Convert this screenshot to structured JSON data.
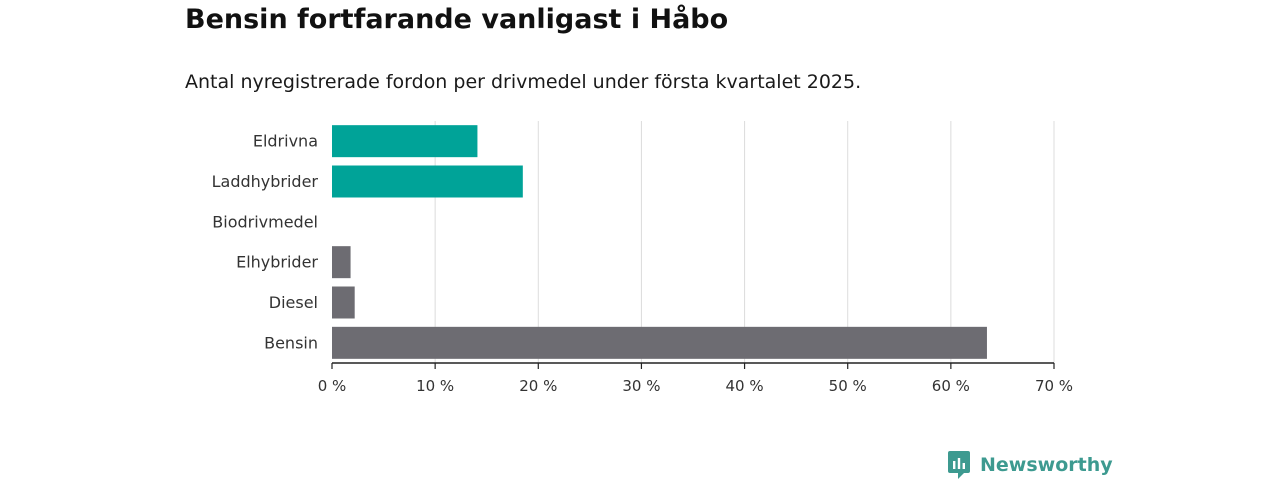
{
  "header": {
    "title": "Bensin fortfarande vanligast i Håbo",
    "subtitle": "Antal nyregistrerade fordon per drivmedel under första kvartalet 2025."
  },
  "footer": {
    "brand": "Newsworthy"
  },
  "chart_data": {
    "type": "bar",
    "orientation": "horizontal",
    "categories": [
      "Eldrivna",
      "Laddhybrider",
      "Biodrivmedel",
      "Elhybrider",
      "Diesel",
      "Bensin"
    ],
    "values": [
      14.1,
      18.5,
      0,
      1.8,
      2.2,
      63.5
    ],
    "bar_colors": [
      "#00a398",
      "#00a398",
      "#00a398",
      "#6d6c72",
      "#6d6c72",
      "#6d6c72"
    ],
    "xlim": [
      0,
      70
    ],
    "xticks": [
      0,
      10,
      20,
      30,
      40,
      50,
      60,
      70
    ],
    "tick_suffix": " %",
    "grid": true,
    "legend": "none"
  }
}
